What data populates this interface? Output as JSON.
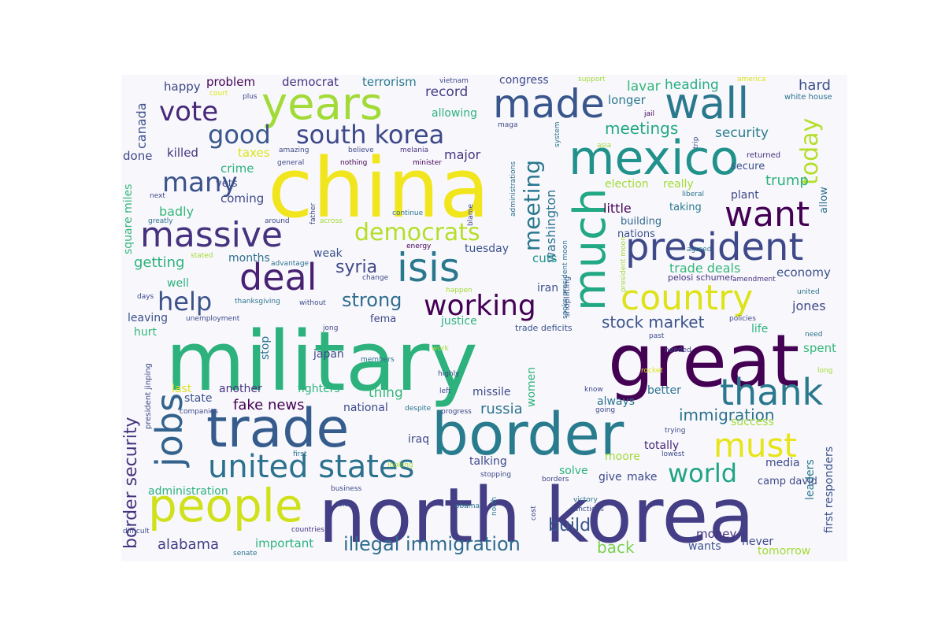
{
  "word_cloud": {
    "palette": "viridis",
    "background": "#f8f8fc",
    "words": [
      {
        "text": "military",
        "color": "#2db27d"
      },
      {
        "text": "north korea",
        "color": "#433e85"
      },
      {
        "text": "china",
        "color": "#f1e51d"
      },
      {
        "text": "great",
        "color": "#440154"
      },
      {
        "text": "border",
        "color": "#287c8e"
      },
      {
        "text": "trade",
        "color": "#365c8d"
      },
      {
        "text": "mexico",
        "color": "#21918c"
      },
      {
        "text": "wall",
        "color": "#2a788e"
      },
      {
        "text": "years",
        "color": "#a2da37"
      },
      {
        "text": "people",
        "color": "#d0e11c"
      },
      {
        "text": "much",
        "color": "#22a884"
      },
      {
        "text": "made",
        "color": "#39568c"
      },
      {
        "text": "president",
        "color": "#3e4989"
      },
      {
        "text": "united states",
        "color": "#2c728e"
      },
      {
        "text": "deal",
        "color": "#482173"
      },
      {
        "text": "massive",
        "color": "#46327e"
      },
      {
        "text": "want",
        "color": "#440154"
      },
      {
        "text": "country",
        "color": "#dde318"
      },
      {
        "text": "isis",
        "color": "#2a788e"
      },
      {
        "text": "thank",
        "color": "#2a788e"
      },
      {
        "text": "jobs",
        "color": "#33638d"
      },
      {
        "text": "must",
        "color": "#e7e419"
      },
      {
        "text": "south korea",
        "color": "#3e4989"
      },
      {
        "text": "good",
        "color": "#39568c"
      },
      {
        "text": "vote",
        "color": "#482878"
      },
      {
        "text": "working",
        "color": "#440154"
      },
      {
        "text": "many",
        "color": "#3b528b"
      },
      {
        "text": "democrats",
        "color": "#b5de2b"
      },
      {
        "text": "help",
        "color": "#3b528b"
      },
      {
        "text": "world",
        "color": "#20a386"
      },
      {
        "text": "meeting",
        "color": "#2a788e"
      },
      {
        "text": "today",
        "color": "#b5de2b"
      },
      {
        "text": "illegal immigration",
        "color": "#2f6c8e"
      },
      {
        "text": "border security",
        "color": "#46337e"
      },
      {
        "text": "strong",
        "color": "#2f6c8e"
      },
      {
        "text": "syria",
        "color": "#3e4989"
      },
      {
        "text": "fake news",
        "color": "#440154"
      },
      {
        "text": "stock market",
        "color": "#3b528b"
      },
      {
        "text": "immigration",
        "color": "#2c728e"
      },
      {
        "text": "russia",
        "color": "#2c728e"
      },
      {
        "text": "alabama",
        "color": "#433e85"
      },
      {
        "text": "build",
        "color": "#39568c"
      },
      {
        "text": "back",
        "color": "#7ad151"
      },
      {
        "text": "washington",
        "color": "#2c728e"
      },
      {
        "text": "meetings",
        "color": "#22a884"
      },
      {
        "text": "security",
        "color": "#287c8e"
      },
      {
        "text": "trump",
        "color": "#2db27d"
      },
      {
        "text": "hard",
        "color": "#3b528b"
      },
      {
        "text": "heading",
        "color": "#27ad81"
      },
      {
        "text": "lavar",
        "color": "#32b67a"
      },
      {
        "text": "longer",
        "color": "#2a788e"
      },
      {
        "text": "terrorism",
        "color": "#2a788e"
      },
      {
        "text": "democrat",
        "color": "#46327e"
      },
      {
        "text": "problem",
        "color": "#440154"
      },
      {
        "text": "happy",
        "color": "#3e4989"
      },
      {
        "text": "record",
        "color": "#433e85"
      },
      {
        "text": "allowing",
        "color": "#2db27d"
      },
      {
        "text": "congress",
        "color": "#3e4989"
      },
      {
        "text": "canada",
        "color": "#3b528b"
      },
      {
        "text": "killed",
        "color": "#46337e"
      },
      {
        "text": "done",
        "color": "#3e4989"
      },
      {
        "text": "taxes",
        "color": "#dde318"
      },
      {
        "text": "crime",
        "color": "#2db27d"
      },
      {
        "text": "vets",
        "color": "#3e4989"
      },
      {
        "text": "coming",
        "color": "#3e4989"
      },
      {
        "text": "badly",
        "color": "#35b779"
      },
      {
        "text": "major",
        "color": "#46327e"
      },
      {
        "text": "election",
        "color": "#a2da37"
      },
      {
        "text": "really",
        "color": "#a2da37"
      },
      {
        "text": "little",
        "color": "#440154"
      },
      {
        "text": "building",
        "color": "#31688e"
      },
      {
        "text": "taking",
        "color": "#2a788e"
      },
      {
        "text": "nations",
        "color": "#3b528b"
      },
      {
        "text": "plant",
        "color": "#3e4989"
      },
      {
        "text": "secure",
        "color": "#3b528b"
      },
      {
        "text": "allow",
        "color": "#2c728e"
      },
      {
        "text": "economy",
        "color": "#3b528b"
      },
      {
        "text": "trade deals",
        "color": "#35b779"
      },
      {
        "text": "cuts",
        "color": "#21918c"
      },
      {
        "text": "tuesday",
        "color": "#3b528b"
      },
      {
        "text": "getting",
        "color": "#2db27d"
      },
      {
        "text": "months",
        "color": "#2c728e"
      },
      {
        "text": "weak",
        "color": "#3b528b"
      },
      {
        "text": "well",
        "color": "#2db27d"
      },
      {
        "text": "square miles",
        "color": "#35b779"
      },
      {
        "text": "leaving",
        "color": "#3b528b"
      },
      {
        "text": "hurt",
        "color": "#35b779"
      },
      {
        "text": "justice",
        "color": "#2db27d"
      },
      {
        "text": "fema",
        "color": "#3e4989"
      },
      {
        "text": "iran",
        "color": "#3b528b"
      },
      {
        "text": "jones",
        "color": "#3e4989"
      },
      {
        "text": "life",
        "color": "#2db27d"
      },
      {
        "text": "spent",
        "color": "#35b779"
      },
      {
        "text": "stop",
        "color": "#2c728e"
      },
      {
        "text": "japan",
        "color": "#3e4989"
      },
      {
        "text": "women",
        "color": "#2db27d"
      },
      {
        "text": "thing",
        "color": "#35b779"
      },
      {
        "text": "missile",
        "color": "#3e4989"
      },
      {
        "text": "last",
        "color": "#dde318"
      },
      {
        "text": "another",
        "color": "#46327e"
      },
      {
        "text": "fighters",
        "color": "#2db27d"
      },
      {
        "text": "state",
        "color": "#3b528b"
      },
      {
        "text": "national",
        "color": "#3e4989"
      },
      {
        "text": "always",
        "color": "#2c728e"
      },
      {
        "text": "better",
        "color": "#2c728e"
      },
      {
        "text": "success",
        "color": "#a2da37"
      },
      {
        "text": "first responders",
        "color": "#3b528b"
      },
      {
        "text": "leaders",
        "color": "#2a788e"
      },
      {
        "text": "totally",
        "color": "#482878"
      },
      {
        "text": "moore",
        "color": "#a2da37"
      },
      {
        "text": "media",
        "color": "#3e4989"
      },
      {
        "text": "iraq",
        "color": "#3e4989"
      },
      {
        "text": "talking",
        "color": "#3e4989"
      },
      {
        "text": "solve",
        "color": "#2db27d"
      },
      {
        "text": "give",
        "color": "#3e4989"
      },
      {
        "text": "make",
        "color": "#3e4989"
      },
      {
        "text": "administration",
        "color": "#2db27d"
      },
      {
        "text": "important",
        "color": "#2db27d"
      },
      {
        "text": "money",
        "color": "#46327e"
      },
      {
        "text": "never",
        "color": "#3e4989"
      },
      {
        "text": "wants",
        "color": "#3b528b"
      },
      {
        "text": "tomorrow",
        "color": "#a2da37"
      },
      {
        "text": "camp david",
        "color": "#3e4989"
      },
      {
        "text": "trade deficits",
        "color": "#3b528b"
      },
      {
        "text": "shoplifting",
        "color": "#3b528b"
      },
      {
        "text": "pelosi schumer",
        "color": "#46327e"
      },
      {
        "text": "vietnam",
        "color": "#3e4989"
      },
      {
        "text": "support",
        "color": "#a2da37"
      },
      {
        "text": "america",
        "color": "#dde318"
      },
      {
        "text": "white house",
        "color": "#2c728e"
      },
      {
        "text": "court",
        "color": "#dde318"
      },
      {
        "text": "plus",
        "color": "#3e4989"
      },
      {
        "text": "maga",
        "color": "#3e4989"
      },
      {
        "text": "jail",
        "color": "#440154"
      },
      {
        "text": "system",
        "color": "#2c728e"
      },
      {
        "text": "asia",
        "color": "#a2da37"
      },
      {
        "text": "trip",
        "color": "#3e4989"
      },
      {
        "text": "returned",
        "color": "#46327e"
      },
      {
        "text": "amazing",
        "color": "#3e4989"
      },
      {
        "text": "believe",
        "color": "#3e4989"
      },
      {
        "text": "melania",
        "color": "#46327e"
      },
      {
        "text": "general",
        "color": "#3e4989"
      },
      {
        "text": "nothing",
        "color": "#440154"
      },
      {
        "text": "minister",
        "color": "#440154"
      },
      {
        "text": "administrations",
        "color": "#2c728e"
      },
      {
        "text": "liberal",
        "color": "#2c728e"
      },
      {
        "text": "next",
        "color": "#3e4989"
      },
      {
        "text": "greatly",
        "color": "#2c728e"
      },
      {
        "text": "around",
        "color": "#3e4989"
      },
      {
        "text": "father",
        "color": "#3e4989"
      },
      {
        "text": "across",
        "color": "#a2da37"
      },
      {
        "text": "continue",
        "color": "#2c728e"
      },
      {
        "text": "blame",
        "color": "#3e4989"
      },
      {
        "text": "agreed",
        "color": "#2c728e"
      },
      {
        "text": "energy",
        "color": "#440154"
      },
      {
        "text": "spoke president moon",
        "color": "#2c728e"
      },
      {
        "text": "president moon",
        "color": "#a2da37"
      },
      {
        "text": "stated",
        "color": "#a2da37"
      },
      {
        "text": "advantage",
        "color": "#2c728e"
      },
      {
        "text": "change",
        "color": "#3e4989"
      },
      {
        "text": "amendment",
        "color": "#46327e"
      },
      {
        "text": "days",
        "color": "#3e4989"
      },
      {
        "text": "thanksgiving",
        "color": "#2c728e"
      },
      {
        "text": "without",
        "color": "#3e4989"
      },
      {
        "text": "happen",
        "color": "#a2da37"
      },
      {
        "text": "united",
        "color": "#2c728e"
      },
      {
        "text": "unemployment",
        "color": "#3e4989"
      },
      {
        "text": "policies",
        "color": "#3e4989"
      },
      {
        "text": "jong",
        "color": "#3e4989"
      },
      {
        "text": "need",
        "color": "#2c728e"
      },
      {
        "text": "president jinping",
        "color": "#3e4989"
      },
      {
        "text": "members",
        "color": "#2c728e"
      },
      {
        "text": "work",
        "color": "#a2da37"
      },
      {
        "text": "past",
        "color": "#3e4989"
      },
      {
        "text": "needed",
        "color": "#3e4989"
      },
      {
        "text": "long",
        "color": "#a2da37"
      },
      {
        "text": "rocket",
        "color": "#dde318"
      },
      {
        "text": "know",
        "color": "#3e4989"
      },
      {
        "text": "highly",
        "color": "#3e4989"
      },
      {
        "text": "left",
        "color": "#3e4989"
      },
      {
        "text": "companies",
        "color": "#3e4989"
      },
      {
        "text": "despite",
        "color": "#2c728e"
      },
      {
        "text": "progress",
        "color": "#3e4989"
      },
      {
        "text": "going",
        "color": "#3e4989"
      },
      {
        "text": "trying",
        "color": "#3e4989"
      },
      {
        "text": "first",
        "color": "#2c728e"
      },
      {
        "text": "looking",
        "color": "#a2da37"
      },
      {
        "text": "lowest",
        "color": "#3e4989"
      },
      {
        "text": "stopping",
        "color": "#3e4989"
      },
      {
        "text": "borders",
        "color": "#3e4989"
      },
      {
        "text": "business",
        "color": "#3e4989"
      },
      {
        "text": "told",
        "color": "#3e4989"
      },
      {
        "text": "obama",
        "color": "#2c728e"
      },
      {
        "text": "north",
        "color": "#2c728e"
      },
      {
        "text": "cost",
        "color": "#3e4989"
      },
      {
        "text": "victory",
        "color": "#2c728e"
      },
      {
        "text": "sanctions",
        "color": "#3e4989"
      },
      {
        "text": "difficult",
        "color": "#3e4989"
      },
      {
        "text": "countries",
        "color": "#46327e"
      },
      {
        "text": "senate",
        "color": "#2c728e"
      }
    ]
  }
}
